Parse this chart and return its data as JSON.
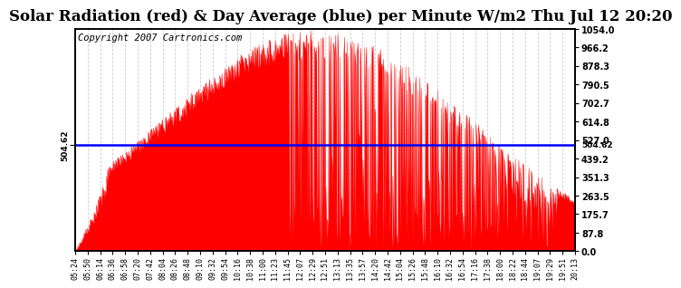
{
  "title": "Solar Radiation (red) & Day Average (blue) per Minute W/m2 Thu Jul 12 20:20",
  "copyright": "Copyright 2007 Cartronics.com",
  "avg_value": 504.62,
  "y_max": 1054.0,
  "y_min": 0.0,
  "y_ticks": [
    0.0,
    87.8,
    175.7,
    263.5,
    351.3,
    439.2,
    527.0,
    614.8,
    702.7,
    790.5,
    878.3,
    966.2,
    1054.0
  ],
  "x_tick_labels": [
    "05:24",
    "05:50",
    "06:14",
    "06:36",
    "06:58",
    "07:20",
    "07:42",
    "08:04",
    "08:26",
    "08:48",
    "09:10",
    "09:32",
    "09:54",
    "10:16",
    "10:38",
    "11:00",
    "11:23",
    "11:45",
    "12:07",
    "12:29",
    "12:51",
    "13:13",
    "13:35",
    "13:57",
    "14:20",
    "14:42",
    "15:04",
    "15:26",
    "15:48",
    "16:10",
    "16:32",
    "16:54",
    "17:16",
    "17:38",
    "18:00",
    "18:22",
    "18:44",
    "19:07",
    "19:29",
    "19:51",
    "20:13"
  ],
  "bg_color": "#ffffff",
  "fill_color": "#ff0000",
  "line_color": "#0000ff",
  "grid_color": "#cccccc",
  "title_fontsize": 12,
  "copyright_fontsize": 7.5,
  "n_points": 890,
  "noon_min": 430,
  "sigma": 270
}
